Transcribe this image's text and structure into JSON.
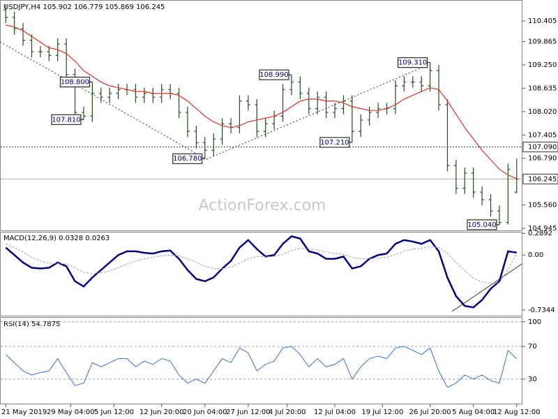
{
  "chart_data": {
    "type": "ohlc",
    "title": "USDJPY,H4 105.902 106.779 105.869 106.245",
    "watermark": "ActionForex.com",
    "color": "#1f4f1f",
    "open": [
      110.7,
      110.5,
      110.2,
      109.9,
      109.6,
      109.6,
      109.5,
      109.8,
      109.0,
      108.0,
      107.9,
      108.5,
      108.4,
      108.5,
      108.6,
      108.6,
      108.4,
      108.5,
      108.4,
      108.6,
      108.5,
      108.0,
      107.5,
      107.2,
      107.0,
      107.3,
      107.7,
      107.6,
      108.3,
      108.2,
      107.5,
      107.7,
      107.9,
      108.6,
      108.8,
      108.5,
      108.1,
      108.4,
      108.0,
      108.1,
      108.3,
      107.5,
      107.8,
      108.0,
      108.1,
      108.1,
      108.7,
      108.8,
      108.8,
      108.7,
      109.1,
      108.2,
      106.6,
      106.0,
      106.4,
      105.9,
      105.7,
      105.4,
      105.1,
      105.902
    ],
    "high": [
      110.85,
      110.65,
      110.35,
      110.05,
      109.75,
      109.75,
      109.95,
      109.95,
      109.15,
      108.15,
      108.8,
      108.65,
      108.65,
      108.75,
      108.75,
      108.75,
      108.65,
      108.65,
      108.75,
      108.75,
      108.65,
      108.15,
      107.65,
      107.35,
      107.45,
      107.85,
      107.85,
      108.45,
      108.45,
      108.35,
      107.85,
      108.05,
      108.75,
      108.99,
      108.95,
      108.65,
      108.55,
      108.55,
      108.25,
      108.45,
      108.45,
      107.95,
      108.15,
      108.25,
      108.25,
      108.85,
      108.95,
      108.95,
      108.95,
      109.31,
      109.25,
      108.35,
      106.75,
      106.55,
      106.55,
      106.05,
      105.85,
      105.55,
      106.65,
      106.779
    ],
    "low": [
      110.35,
      110.05,
      109.75,
      109.45,
      109.45,
      109.35,
      109.35,
      108.85,
      107.85,
      107.81,
      107.75,
      108.25,
      108.25,
      108.35,
      108.45,
      108.25,
      108.25,
      108.25,
      108.25,
      108.35,
      107.85,
      107.35,
      107.05,
      106.78,
      106.85,
      107.15,
      107.45,
      107.45,
      108.05,
      107.35,
      107.35,
      107.55,
      107.75,
      108.45,
      108.35,
      107.95,
      107.95,
      107.85,
      107.85,
      107.95,
      107.21,
      107.35,
      107.65,
      107.85,
      107.95,
      107.95,
      108.55,
      108.65,
      108.55,
      108.55,
      108.05,
      106.45,
      105.85,
      105.85,
      105.75,
      105.55,
      105.25,
      105.04,
      105.05,
      105.869
    ],
    "close": [
      110.5,
      110.2,
      109.9,
      109.6,
      109.6,
      109.5,
      109.8,
      109.0,
      108.0,
      107.9,
      108.5,
      108.4,
      108.5,
      108.6,
      108.6,
      108.4,
      108.5,
      108.4,
      108.6,
      108.5,
      108.0,
      107.5,
      107.2,
      107.0,
      107.3,
      107.7,
      107.6,
      108.3,
      108.2,
      107.5,
      107.7,
      107.9,
      108.6,
      108.8,
      108.5,
      108.1,
      108.4,
      108.0,
      108.1,
      108.3,
      107.5,
      107.8,
      108.0,
      108.1,
      108.1,
      108.7,
      108.8,
      108.8,
      108.7,
      109.1,
      108.2,
      106.6,
      106.0,
      106.4,
      105.9,
      105.7,
      105.4,
      105.1,
      106.5,
      106.245
    ],
    "ma": {
      "color": "#e0302a",
      "values": [
        110.3,
        110.25,
        110.15,
        110.0,
        109.85,
        109.7,
        109.65,
        109.55,
        109.35,
        109.1,
        108.95,
        108.8,
        108.7,
        108.65,
        108.6,
        108.55,
        108.55,
        108.5,
        108.5,
        108.5,
        108.45,
        108.3,
        108.1,
        107.9,
        107.75,
        107.65,
        107.6,
        107.65,
        107.75,
        107.8,
        107.85,
        107.9,
        108.0,
        108.15,
        108.3,
        108.35,
        108.35,
        108.3,
        108.3,
        108.25,
        108.15,
        108.1,
        108.05,
        108.05,
        108.1,
        108.2,
        108.35,
        108.45,
        108.55,
        108.65,
        108.6,
        108.3,
        107.95,
        107.6,
        107.3,
        107.0,
        106.75,
        106.5,
        106.35,
        106.25
      ]
    },
    "ylim": [
      104.89,
      110.96
    ],
    "yticks": [
      110.405,
      109.865,
      {
        "value": 109.25,
        "label": "109.250"
      },
      108.635,
      {
        "value": 108.02,
        "label": "108.020"
      },
      107.405,
      {
        "value": 106.79,
        "label": "106.790"
      },
      {
        "value": 105.56,
        "label": "105.560"
      },
      104.945
    ],
    "xticks": [
      {
        "value": 0,
        "label": "21 May 2019"
      },
      {
        "value": 7.5,
        "label": "29 May 04:00"
      },
      {
        "value": 12.5,
        "label": "5 Jun 12:00"
      },
      {
        "value": 18,
        "label": "12 Jun 20:00"
      },
      {
        "value": 23,
        "label": "20 Jun 04:00"
      },
      {
        "value": 28,
        "label": "27 Jun 12:00"
      },
      {
        "value": 32.5,
        "label": "4 Jul 20:00"
      },
      {
        "value": 38,
        "label": "12 Jul 04:00"
      },
      {
        "value": 43.5,
        "label": "19 Jul 12:00"
      },
      {
        "value": 49,
        "label": "26 Jul 20:00"
      },
      {
        "value": 54,
        "label": "5 Aug 04:00"
      },
      {
        "value": 59,
        "label": "12 Aug 12:00"
      }
    ],
    "levels": [
      {
        "value": 107.09,
        "label": "107.090",
        "style": "dotted"
      },
      {
        "value": 106.245,
        "style": "solid"
      }
    ],
    "annotations": [
      {
        "x": 10,
        "value": 108.8,
        "label": "108.800"
      },
      {
        "x": 9,
        "value": 107.81,
        "label": "107.810"
      },
      {
        "x": 23,
        "value": 106.78,
        "label": "106.780"
      },
      {
        "x": 33,
        "value": 108.99,
        "label": "108.990"
      },
      {
        "x": 40,
        "value": 107.21,
        "label": "107.210"
      },
      {
        "x": 49,
        "value": 109.31,
        "label": "109.310"
      },
      {
        "x": 57,
        "value": 105.04,
        "label": "105.040"
      }
    ],
    "macd": {
      "title": "MACD(12,26,9) 0.0328 0.0263",
      "ylim": [
        -0.81,
        0.31
      ],
      "yticks": [
        0.2892,
        {
          "value": 0,
          "label": "0.00"
        },
        -0.7344
      ],
      "series": [
        {
          "color": "#000080",
          "values": [
            0.1,
            0.0,
            -0.1,
            -0.17,
            -0.18,
            -0.17,
            -0.1,
            -0.15,
            -0.35,
            -0.42,
            -0.3,
            -0.2,
            -0.1,
            0.0,
            0.05,
            0.05,
            0.03,
            0.02,
            0.05,
            0.06,
            -0.05,
            -0.2,
            -0.32,
            -0.35,
            -0.3,
            -0.18,
            -0.08,
            0.1,
            0.2,
            0.08,
            -0.02,
            0.0,
            0.15,
            0.25,
            0.22,
            0.05,
            0.02,
            -0.05,
            -0.05,
            -0.02,
            -0.18,
            -0.15,
            -0.05,
            0.0,
            0.02,
            0.15,
            0.2,
            0.18,
            0.15,
            0.2,
            0.05,
            -0.3,
            -0.55,
            -0.68,
            -0.7,
            -0.6,
            -0.45,
            -0.35,
            0.05,
            0.0328
          ]
        },
        {
          "color": "#a0a0a0",
          "values": [
            0.15,
            0.1,
            0.04,
            -0.03,
            -0.08,
            -0.11,
            -0.11,
            -0.12,
            -0.17,
            -0.23,
            -0.25,
            -0.24,
            -0.21,
            -0.17,
            -0.12,
            -0.08,
            -0.05,
            -0.03,
            -0.01,
            0.0,
            -0.01,
            -0.05,
            -0.1,
            -0.15,
            -0.18,
            -0.18,
            -0.16,
            -0.11,
            -0.05,
            -0.02,
            -0.02,
            -0.02,
            0.01,
            0.06,
            0.09,
            0.08,
            0.07,
            0.04,
            0.02,
            0.01,
            -0.03,
            -0.05,
            -0.05,
            -0.04,
            -0.03,
            0.01,
            0.05,
            0.08,
            0.09,
            0.11,
            0.1,
            0.02,
            -0.1,
            -0.21,
            -0.31,
            -0.36,
            -0.38,
            -0.37,
            -0.2,
            0.0263
          ]
        }
      ]
    },
    "rsi": {
      "title": "RSI(14) 54.7875",
      "ylim": [
        0,
        105.8
      ],
      "yticks": [
        100,
        70,
        30
      ],
      "grid": true,
      "color": "#3a6fd0",
      "values": [
        60,
        50,
        40,
        35,
        38,
        40,
        55,
        38,
        22,
        25,
        50,
        45,
        50,
        55,
        55,
        45,
        52,
        48,
        55,
        52,
        35,
        25,
        30,
        25,
        40,
        55,
        50,
        68,
        62,
        40,
        48,
        52,
        68,
        70,
        60,
        45,
        55,
        45,
        48,
        55,
        30,
        45,
        55,
        58,
        55,
        68,
        70,
        65,
        60,
        68,
        40,
        20,
        25,
        35,
        30,
        35,
        28,
        25,
        65,
        54.7875
      ]
    }
  }
}
